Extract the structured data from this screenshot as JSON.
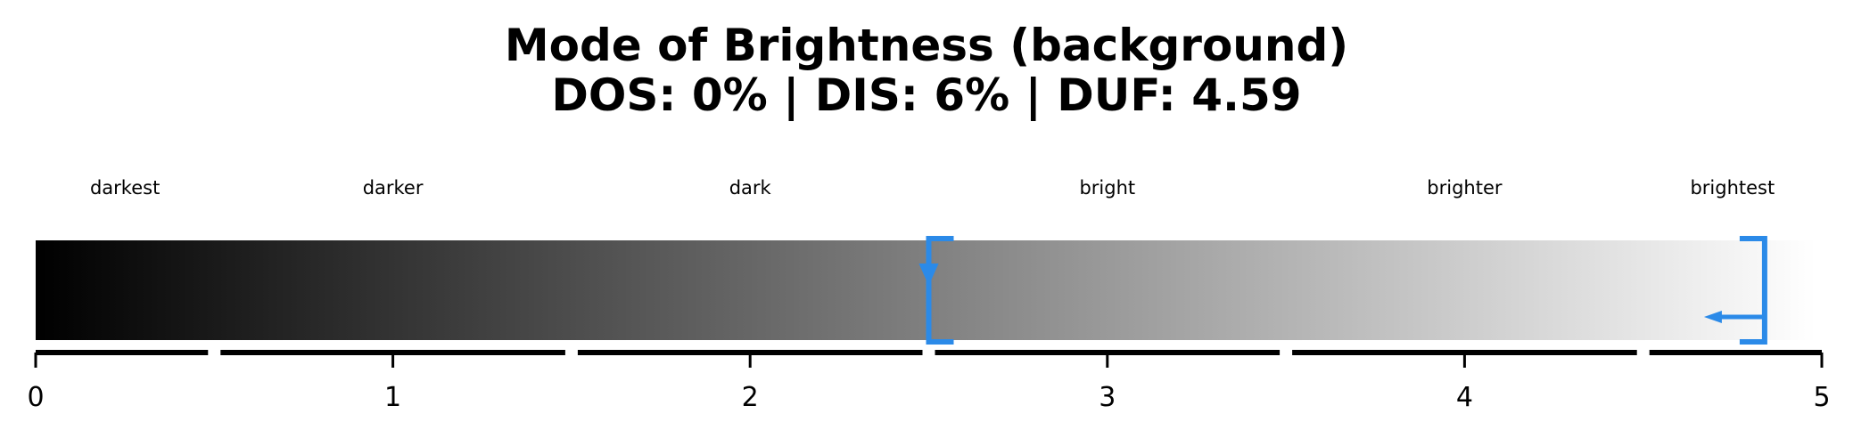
{
  "chart_data": {
    "type": "gradient-scale",
    "title_lines": [
      "Mode of Brightness (background)",
      "DOS: 0% | DIS: 6% | DUF: 4.59"
    ],
    "xlim": [
      0,
      5
    ],
    "ticks": [
      0,
      1,
      2,
      3,
      4,
      5
    ],
    "tick_labels": [
      "0",
      "1",
      "2",
      "3",
      "4",
      "5"
    ],
    "bands": [
      {
        "label": "darkest",
        "from": 0.0,
        "to": 0.5
      },
      {
        "label": "darker",
        "from": 0.5,
        "to": 1.5
      },
      {
        "label": "dark",
        "from": 1.5,
        "to": 2.5
      },
      {
        "label": "bright",
        "from": 2.5,
        "to": 3.5
      },
      {
        "label": "brighter",
        "from": 3.5,
        "to": 4.5
      },
      {
        "label": "brightest",
        "from": 4.5,
        "to": 5.0
      }
    ],
    "gradient": {
      "start_color": "#000000",
      "end_color": "#ffffff",
      "from": 0,
      "to": 5
    },
    "markers": [
      {
        "name": "dis-bracket",
        "position": 2.5,
        "side": "left",
        "arrow": "down"
      },
      {
        "name": "duf-bracket",
        "position": 4.84,
        "side": "right",
        "arrow": "left"
      }
    ],
    "marker_color": "#2b8ae8",
    "grid": false,
    "legend": "none"
  }
}
